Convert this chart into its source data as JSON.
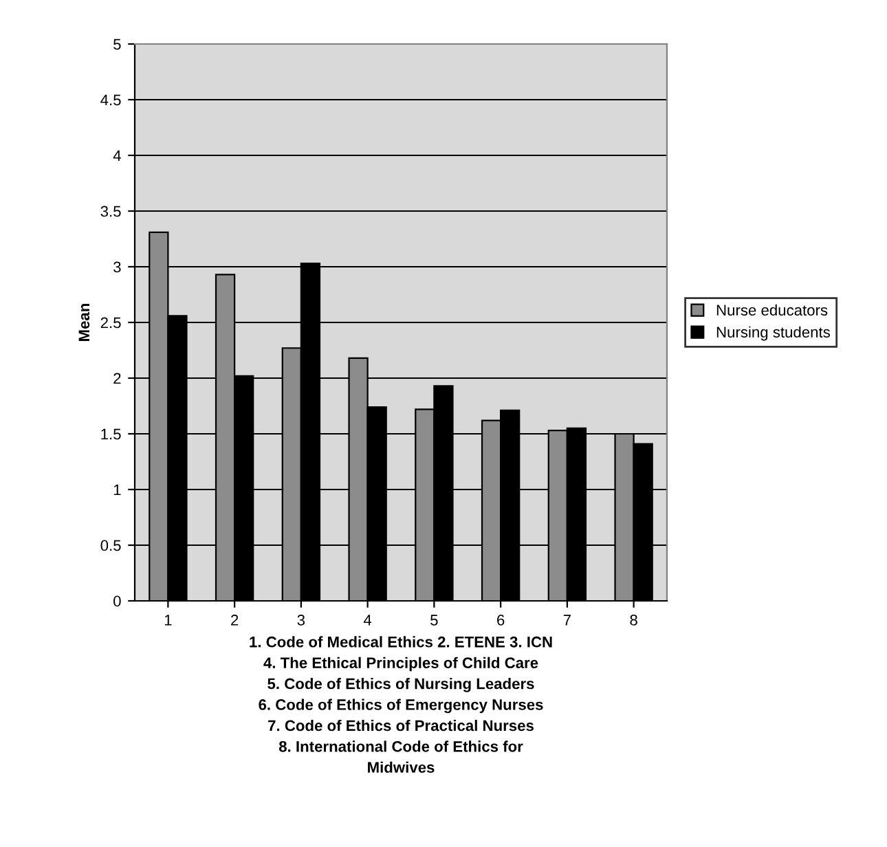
{
  "chart_data": {
    "type": "bar",
    "categories": [
      "1",
      "2",
      "3",
      "4",
      "5",
      "6",
      "7",
      "8"
    ],
    "series": [
      {
        "name": "Nurse educators",
        "color": "#8c8c8c",
        "values": [
          3.31,
          2.93,
          2.27,
          2.18,
          1.72,
          1.62,
          1.53,
          1.5
        ]
      },
      {
        "name": "Nursing students",
        "color": "#000000",
        "values": [
          2.56,
          2.02,
          3.03,
          1.74,
          1.93,
          1.71,
          1.55,
          1.41
        ]
      }
    ],
    "ylabel": "Mean",
    "xlabel": "1. Code of Medical Ethics 2. ETENE 3. ICN\n4. The Ethical Principles of Child Care\n5. Code of Ethics of Nursing Leaders\n6. Code of Ethics of Emergency Nurses\n7. Code of Ethics of Practical Nurses\n8. International Code of Ethics for\nMidwives",
    "ylim": [
      0,
      5
    ],
    "yticks": [
      0,
      0.5,
      1,
      1.5,
      2,
      2.5,
      3,
      3.5,
      4,
      4.5,
      5
    ],
    "grid": "y",
    "legend": "right"
  }
}
